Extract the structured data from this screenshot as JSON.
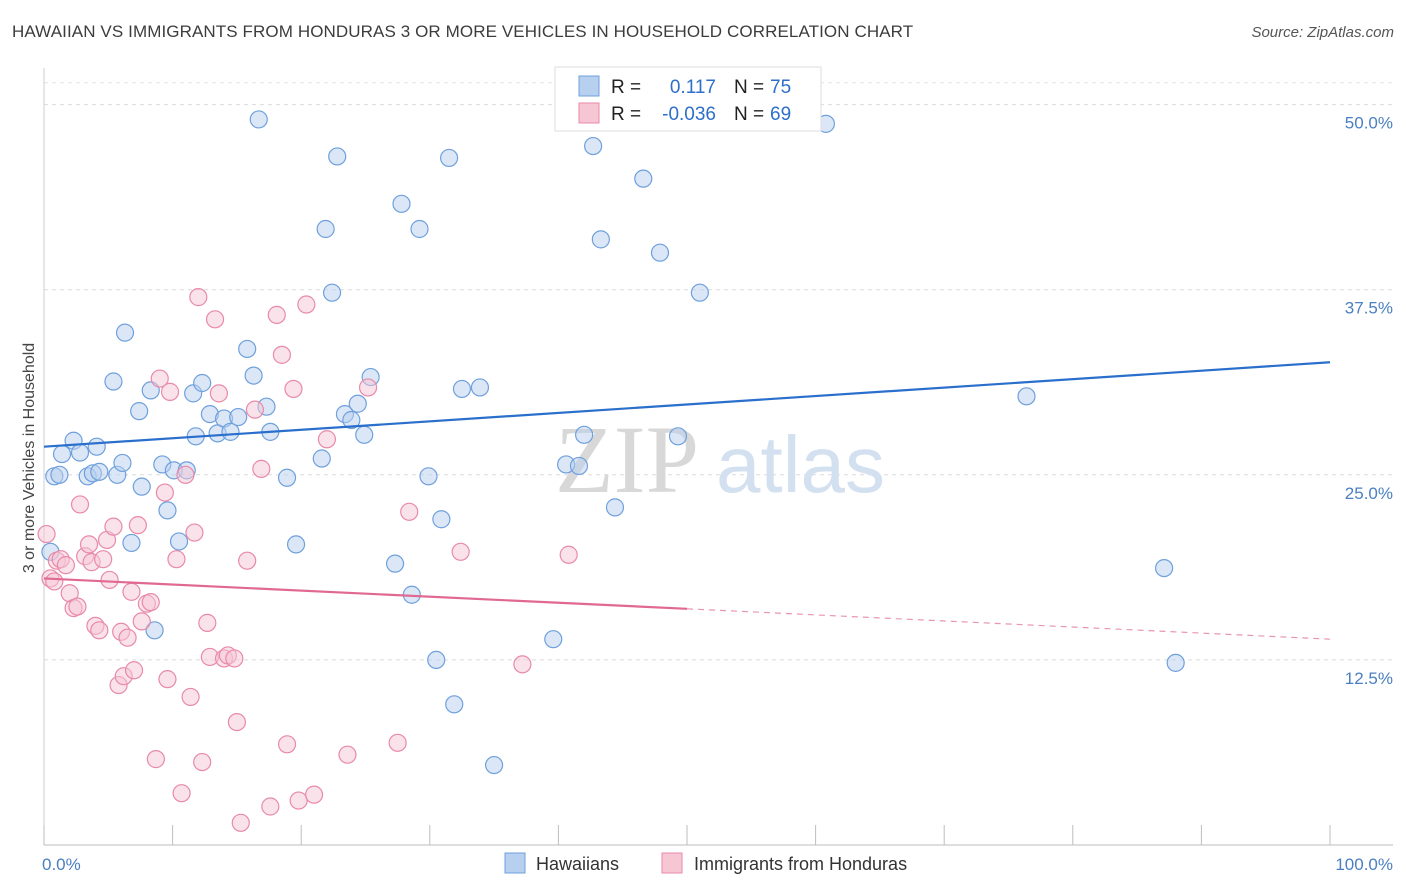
{
  "title": "HAWAIIAN VS IMMIGRANTS FROM HONDURAS 3 OR MORE VEHICLES IN HOUSEHOLD CORRELATION CHART",
  "source": "Source: ZipAtlas.com",
  "watermark": {
    "zip": "ZIP",
    "atlas": "atlas"
  },
  "chart_data": {
    "type": "scatter",
    "ylabel": "3 or more Vehicles in Household",
    "xlim": [
      0,
      100
    ],
    "ylim": [
      0,
      52
    ],
    "x_tick_labels": [
      {
        "value": 0,
        "label": "0.0%"
      },
      {
        "value": 100,
        "label": "100.0%"
      }
    ],
    "y_tick_labels": [
      {
        "value": 12.5,
        "label": "12.5%"
      },
      {
        "value": 25.0,
        "label": "25.0%"
      },
      {
        "value": 37.5,
        "label": "37.5%"
      },
      {
        "value": 50.0,
        "label": "50.0%"
      }
    ],
    "grid": "horizontal dashed",
    "legend": {
      "placement": "top-center",
      "entries": [
        {
          "r_label": "R =",
          "r": "0.117",
          "n_label": "N =",
          "n": "75"
        },
        {
          "r_label": "R =",
          "r": "-0.036",
          "n_label": "N =",
          "n": "69"
        }
      ]
    },
    "series": [
      {
        "name": "Hawaiians",
        "color": "#6fa0dc",
        "fill": "#b8d0ef",
        "trend": {
          "x": [
            0,
            100
          ],
          "y": [
            26.9,
            32.6
          ],
          "style": "solid"
        },
        "points": [
          [
            0.5,
            19.8
          ],
          [
            0.8,
            24.9
          ],
          [
            1.2,
            25.0
          ],
          [
            1.4,
            26.4
          ],
          [
            2.3,
            27.3
          ],
          [
            2.8,
            26.5
          ],
          [
            3.4,
            24.9
          ],
          [
            3.8,
            25.1
          ],
          [
            4.1,
            26.9
          ],
          [
            4.3,
            25.2
          ],
          [
            5.4,
            31.3
          ],
          [
            5.7,
            25.0
          ],
          [
            6.1,
            25.8
          ],
          [
            6.3,
            34.6
          ],
          [
            6.8,
            20.4
          ],
          [
            7.4,
            29.3
          ],
          [
            7.6,
            24.2
          ],
          [
            8.3,
            30.7
          ],
          [
            8.6,
            14.5
          ],
          [
            9.2,
            25.7
          ],
          [
            9.6,
            22.6
          ],
          [
            10.1,
            25.3
          ],
          [
            10.5,
            20.5
          ],
          [
            11.1,
            25.3
          ],
          [
            11.6,
            30.5
          ],
          [
            11.8,
            27.6
          ],
          [
            12.3,
            31.2
          ],
          [
            12.9,
            29.1
          ],
          [
            13.5,
            27.8
          ],
          [
            14.0,
            28.8
          ],
          [
            14.5,
            27.9
          ],
          [
            15.1,
            28.9
          ],
          [
            15.8,
            33.5
          ],
          [
            16.3,
            31.7
          ],
          [
            16.7,
            49.0
          ],
          [
            17.3,
            29.6
          ],
          [
            17.6,
            27.9
          ],
          [
            18.9,
            24.8
          ],
          [
            19.6,
            20.3
          ],
          [
            21.6,
            26.1
          ],
          [
            21.9,
            41.6
          ],
          [
            22.4,
            37.3
          ],
          [
            22.8,
            46.5
          ],
          [
            23.4,
            29.1
          ],
          [
            23.9,
            28.7
          ],
          [
            24.4,
            29.8
          ],
          [
            24.9,
            27.7
          ],
          [
            25.4,
            31.6
          ],
          [
            27.3,
            19.0
          ],
          [
            27.8,
            43.3
          ],
          [
            28.6,
            16.9
          ],
          [
            29.2,
            41.6
          ],
          [
            29.9,
            24.9
          ],
          [
            30.5,
            12.5
          ],
          [
            30.9,
            22.0
          ],
          [
            31.5,
            46.4
          ],
          [
            31.9,
            9.5
          ],
          [
            32.5,
            30.8
          ],
          [
            33.9,
            30.9
          ],
          [
            35.0,
            5.4
          ],
          [
            39.6,
            13.9
          ],
          [
            40.6,
            25.7
          ],
          [
            41.6,
            25.6
          ],
          [
            42.0,
            27.7
          ],
          [
            42.7,
            47.2
          ],
          [
            43.3,
            40.9
          ],
          [
            44.4,
            22.8
          ],
          [
            46.6,
            45.0
          ],
          [
            47.9,
            40.0
          ],
          [
            49.3,
            27.6
          ],
          [
            51.0,
            37.3
          ],
          [
            60.8,
            48.7
          ],
          [
            76.4,
            30.3
          ],
          [
            87.1,
            18.7
          ],
          [
            88.0,
            12.3
          ]
        ]
      },
      {
        "name": "Immigrants from Honduras",
        "color": "#e88aa8",
        "fill": "#f6c6d5",
        "trend": {
          "x": [
            0,
            100
          ],
          "y": [
            18.0,
            13.9
          ],
          "solid_until": 50,
          "style": "solid-then-dashed"
        },
        "points": [
          [
            0.2,
            21.0
          ],
          [
            0.5,
            18.0
          ],
          [
            0.8,
            17.8
          ],
          [
            1.0,
            19.2
          ],
          [
            1.3,
            19.3
          ],
          [
            1.7,
            18.9
          ],
          [
            2.0,
            17.0
          ],
          [
            2.3,
            16.0
          ],
          [
            2.6,
            16.1
          ],
          [
            2.8,
            23.0
          ],
          [
            3.2,
            19.5
          ],
          [
            3.5,
            20.3
          ],
          [
            3.7,
            19.1
          ],
          [
            4.0,
            14.8
          ],
          [
            4.3,
            14.5
          ],
          [
            4.6,
            19.3
          ],
          [
            4.9,
            20.6
          ],
          [
            5.1,
            17.9
          ],
          [
            5.4,
            21.5
          ],
          [
            5.8,
            10.8
          ],
          [
            6.0,
            14.4
          ],
          [
            6.2,
            11.4
          ],
          [
            6.5,
            14.0
          ],
          [
            6.8,
            17.1
          ],
          [
            7.0,
            11.8
          ],
          [
            7.3,
            21.6
          ],
          [
            7.6,
            15.1
          ],
          [
            8.0,
            16.3
          ],
          [
            8.3,
            16.4
          ],
          [
            8.7,
            5.8
          ],
          [
            9.0,
            31.5
          ],
          [
            9.4,
            23.8
          ],
          [
            9.6,
            11.2
          ],
          [
            9.8,
            30.6
          ],
          [
            10.3,
            19.3
          ],
          [
            10.7,
            3.5
          ],
          [
            11.0,
            25.0
          ],
          [
            11.4,
            10.0
          ],
          [
            11.7,
            21.1
          ],
          [
            12.0,
            37.0
          ],
          [
            12.3,
            5.6
          ],
          [
            12.7,
            15.0
          ],
          [
            12.9,
            12.7
          ],
          [
            13.3,
            35.5
          ],
          [
            13.6,
            30.5
          ],
          [
            14.0,
            12.6
          ],
          [
            14.3,
            12.8
          ],
          [
            14.8,
            12.6
          ],
          [
            15.0,
            8.3
          ],
          [
            15.3,
            1.5
          ],
          [
            15.8,
            19.2
          ],
          [
            16.4,
            29.4
          ],
          [
            16.9,
            25.4
          ],
          [
            17.6,
            2.6
          ],
          [
            18.1,
            35.8
          ],
          [
            18.5,
            33.1
          ],
          [
            18.9,
            6.8
          ],
          [
            19.4,
            30.8
          ],
          [
            19.8,
            3.0
          ],
          [
            20.4,
            36.5
          ],
          [
            21.0,
            3.4
          ],
          [
            22.0,
            27.4
          ],
          [
            23.6,
            6.1
          ],
          [
            25.2,
            30.9
          ],
          [
            27.5,
            6.9
          ],
          [
            28.4,
            22.5
          ],
          [
            32.4,
            19.8
          ],
          [
            37.2,
            12.2
          ],
          [
            40.8,
            19.6
          ]
        ]
      }
    ]
  }
}
